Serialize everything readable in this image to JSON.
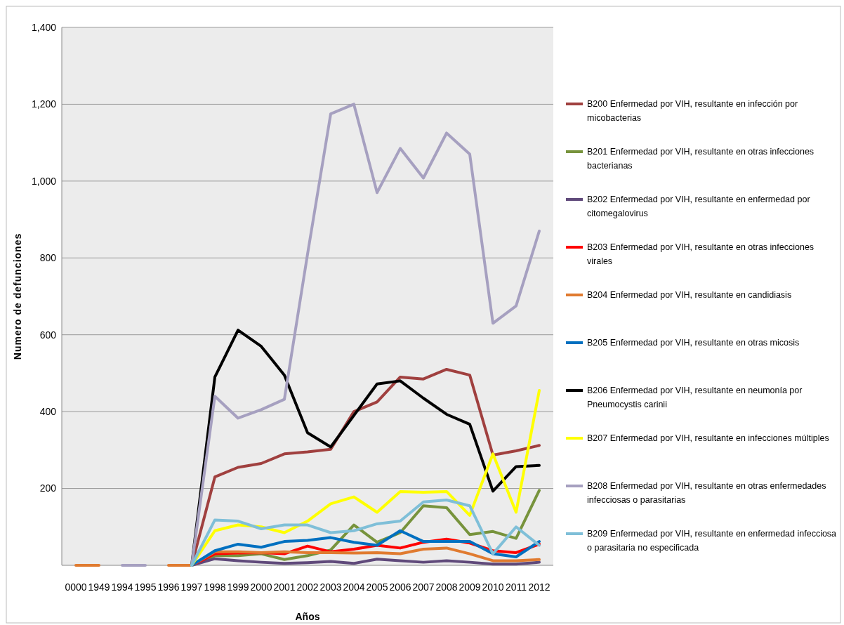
{
  "chart_data": {
    "type": "line",
    "xlabel": "Años",
    "ylabel": "Numero de defunciones",
    "categories": [
      "0000",
      "1949",
      "1994",
      "1995",
      "1996",
      "1997",
      "1998",
      "1999",
      "2000",
      "2001",
      "2002",
      "2003",
      "2004",
      "2005",
      "2006",
      "2007",
      "2008",
      "2009",
      "2010",
      "2011",
      "2012"
    ],
    "ylim": [
      0,
      1400
    ],
    "yticks": [
      {
        "value": 200,
        "label": "200"
      },
      {
        "value": 400,
        "label": "400"
      },
      {
        "value": 600,
        "label": "600"
      },
      {
        "value": 800,
        "label": "800"
      },
      {
        "value": 1000,
        "label": "1,000"
      },
      {
        "value": 1200,
        "label": "1,200"
      },
      {
        "value": 1400,
        "label": "1,400"
      }
    ],
    "grid": "y",
    "legend": "right",
    "marker": "none",
    "line_style": "solid",
    "series": [
      {
        "name": "B200  Enfermedad por VIH, resultante en infección por micobacterias",
        "color": "#a0403f",
        "values": [
          null,
          null,
          null,
          null,
          null,
          0,
          230,
          255,
          265,
          290,
          295,
          302,
          400,
          425,
          490,
          485,
          510,
          495,
          287,
          298,
          312
        ]
      },
      {
        "name": "B201  Enfermedad por VIH, resultante en otras infecciones bacterianas",
        "color": "#77933c",
        "values": [
          null,
          null,
          null,
          null,
          null,
          0,
          25,
          25,
          30,
          15,
          25,
          40,
          105,
          60,
          85,
          155,
          150,
          80,
          88,
          70,
          195
        ]
      },
      {
        "name": "B202  Enfermedad por VIH, resultante en enfermedad por citomegalovirus",
        "color": "#604a7b",
        "values": [
          null,
          null,
          null,
          null,
          null,
          0,
          17,
          12,
          8,
          5,
          7,
          10,
          5,
          16,
          12,
          8,
          12,
          8,
          3,
          3,
          8
        ]
      },
      {
        "name": "B203  Enfermedad por VIH, resultante en otras infecciones virales",
        "color": "#ff0000",
        "values": [
          null,
          null,
          null,
          null,
          null,
          0,
          30,
          32,
          33,
          30,
          50,
          35,
          42,
          52,
          45,
          60,
          68,
          58,
          38,
          33,
          55
        ]
      },
      {
        "name": "B204  Enfermedad por VIH, resultante en candidiasis",
        "color": "#e07b30",
        "values": [
          0,
          0,
          null,
          null,
          0,
          0,
          35,
          35,
          33,
          35,
          33,
          33,
          32,
          33,
          30,
          42,
          45,
          30,
          12,
          12,
          15
        ]
      },
      {
        "name": "B205  Enfermedad por VIH, resultante en otras micosis",
        "color": "#0070c0",
        "values": [
          null,
          null,
          null,
          null,
          null,
          0,
          38,
          55,
          47,
          62,
          65,
          72,
          60,
          52,
          90,
          62,
          62,
          62,
          30,
          22,
          62
        ]
      },
      {
        "name": "B206  Enfermedad por VIH, resultante en neumonía por Pneumocystis carinii",
        "color": "#000000",
        "values": [
          null,
          null,
          null,
          null,
          null,
          0,
          490,
          612,
          570,
          495,
          345,
          308,
          390,
          472,
          480,
          435,
          393,
          367,
          193,
          257,
          260
        ]
      },
      {
        "name": "B207  Enfermedad por VIH, resultante en infecciones múltiples",
        "color": "#ffff00",
        "values": [
          null,
          null,
          null,
          null,
          null,
          0,
          90,
          105,
          100,
          85,
          115,
          160,
          178,
          138,
          192,
          190,
          192,
          130,
          290,
          138,
          455
        ]
      },
      {
        "name": "B208  Enfermedad por VIH, resultante en otras enfermedades infecciosas o parasitarias",
        "color": "#a6a0c0",
        "values": [
          null,
          null,
          0,
          0,
          null,
          0,
          440,
          383,
          405,
          432,
          810,
          1175,
          1200,
          970,
          1085,
          1008,
          1125,
          1070,
          630,
          675,
          870
        ]
      },
      {
        "name": "B209  Enfermedad por VIH, resultante en enfermedad infecciosa o parasitaria no especificada",
        "color": "#7fbfd8",
        "values": [
          null,
          null,
          null,
          null,
          null,
          0,
          118,
          115,
          95,
          105,
          105,
          85,
          90,
          108,
          115,
          165,
          170,
          155,
          30,
          100,
          52
        ]
      }
    ]
  }
}
